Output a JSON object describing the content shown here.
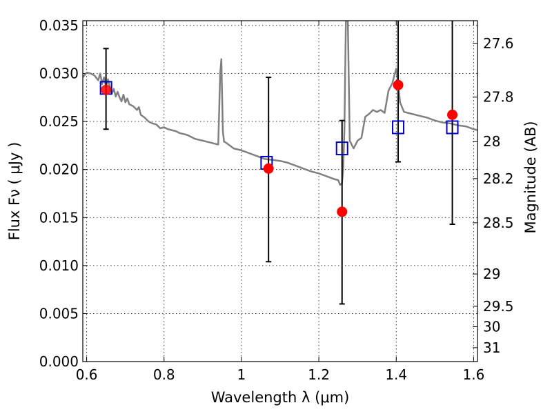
{
  "chart_data": {
    "type": "scatter",
    "xlabel": "Wavelength  λ (μm)",
    "ylabel": "Flux  Fν  ( μJy )",
    "y2label": "Magnitude (AB)",
    "xlim": [
      0.59,
      1.61
    ],
    "ylim": [
      0.0,
      0.0355
    ],
    "x_ticks": [
      "0.6",
      "0.8",
      "1",
      "1.2",
      "1.4",
      "1.6"
    ],
    "y_ticks": [
      "0.000",
      "0.005",
      "0.010",
      "0.015",
      "0.020",
      "0.025",
      "0.030",
      "0.035"
    ],
    "y2_ticks": [
      {
        "label": "27.6",
        "mag": 27.6
      },
      {
        "label": "27.8",
        "mag": 27.8
      },
      {
        "label": "28",
        "mag": 28.0
      },
      {
        "label": "28.2",
        "mag": 28.2
      },
      {
        "label": "28.5",
        "mag": 28.5
      },
      {
        "label": "29",
        "mag": 29.0
      },
      {
        "label": "29.5",
        "mag": 29.5
      },
      {
        "label": "30",
        "mag": 30.0
      },
      {
        "label": "31",
        "mag": 31.0
      }
    ],
    "grid": true,
    "colors": {
      "observed": "#ff0000",
      "model_photometry": "#0000cc",
      "sed": "#808080",
      "errorbar": "#000000"
    },
    "series": [
      {
        "kind": "observed",
        "x": [
          0.65,
          1.07,
          1.26,
          1.405,
          1.545
        ],
        "y": [
          0.0283,
          0.0201,
          0.0156,
          0.0288,
          0.0257
        ],
        "yerr_low": [
          0.0242,
          0.0104,
          0.006,
          0.0208,
          0.0143
        ],
        "yerr_high": [
          0.0326,
          0.0296,
          0.0251,
          0.0355,
          0.0355
        ]
      },
      {
        "kind": "model_photometry",
        "x": [
          0.65,
          1.065,
          1.26,
          1.405,
          1.545
        ],
        "y": [
          0.0285,
          0.0207,
          0.0222,
          0.0244,
          0.0244
        ]
      },
      {
        "kind": "sed",
        "x": [
          0.59,
          0.6,
          0.61,
          0.62,
          0.63,
          0.635,
          0.64,
          0.645,
          0.65,
          0.655,
          0.66,
          0.665,
          0.67,
          0.675,
          0.68,
          0.685,
          0.69,
          0.695,
          0.7,
          0.705,
          0.71,
          0.72,
          0.73,
          0.735,
          0.74,
          0.75,
          0.76,
          0.77,
          0.78,
          0.79,
          0.8,
          0.81,
          0.82,
          0.83,
          0.84,
          0.85,
          0.86,
          0.87,
          0.88,
          0.9,
          0.92,
          0.94,
          0.945,
          0.948,
          0.952,
          0.955,
          0.96,
          0.98,
          1.0,
          1.02,
          1.04,
          1.06,
          1.08,
          1.1,
          1.12,
          1.14,
          1.16,
          1.18,
          1.2,
          1.22,
          1.24,
          1.25,
          1.255,
          1.26,
          1.263,
          1.266,
          1.27,
          1.275,
          1.28,
          1.29,
          1.3,
          1.31,
          1.32,
          1.33,
          1.34,
          1.35,
          1.36,
          1.37,
          1.38,
          1.39,
          1.4,
          1.405,
          1.41,
          1.42,
          1.44,
          1.46,
          1.48,
          1.5,
          1.52,
          1.54,
          1.56,
          1.58,
          1.6,
          1.61
        ],
        "y": [
          0.0296,
          0.0301,
          0.03,
          0.0298,
          0.0293,
          0.03,
          0.0289,
          0.0296,
          0.0286,
          0.0294,
          0.0285,
          0.0279,
          0.0284,
          0.0276,
          0.0281,
          0.0275,
          0.0271,
          0.0278,
          0.027,
          0.0274,
          0.0268,
          0.0266,
          0.0262,
          0.0265,
          0.0257,
          0.0254,
          0.025,
          0.0248,
          0.0247,
          0.0243,
          0.0244,
          0.0242,
          0.0241,
          0.024,
          0.0238,
          0.0237,
          0.0236,
          0.0234,
          0.0232,
          0.023,
          0.0228,
          0.0226,
          0.03,
          0.0315,
          0.024,
          0.0229,
          0.0228,
          0.0222,
          0.022,
          0.0217,
          0.0214,
          0.0211,
          0.021,
          0.0209,
          0.0207,
          0.0204,
          0.0201,
          0.0198,
          0.0196,
          0.0193,
          0.019,
          0.0189,
          0.0184,
          0.0186,
          0.02,
          0.024,
          0.0355,
          0.0355,
          0.023,
          0.0222,
          0.023,
          0.0233,
          0.0255,
          0.0258,
          0.0262,
          0.026,
          0.0262,
          0.0259,
          0.0282,
          0.029,
          0.0305,
          0.029,
          0.027,
          0.026,
          0.0258,
          0.0256,
          0.0254,
          0.0251,
          0.0249,
          0.0248,
          0.0246,
          0.0245,
          0.0242,
          0.0241
        ]
      }
    ]
  }
}
